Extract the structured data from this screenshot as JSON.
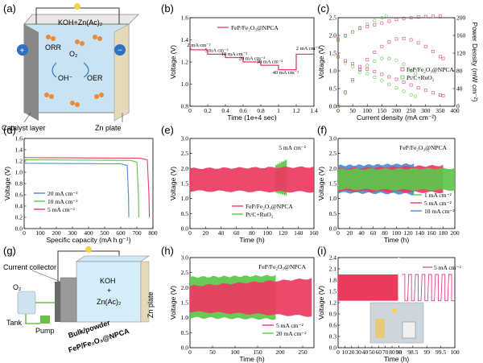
{
  "panels": {
    "a": {
      "label": "(a)",
      "electrolyte": "KOH+Zn(Ac)₂",
      "o2": "O₂",
      "orr": "ORR",
      "oer": "OER",
      "oh": "OH⁻",
      "catalyst_layer": "Catalyst layer",
      "zn_plate": "Zn plate",
      "plus": "+",
      "minus": "−"
    },
    "b": {
      "label": "(b)"
    },
    "c": {
      "label": "(c)"
    },
    "d": {
      "label": "(d)"
    },
    "e": {
      "label": "(e)"
    },
    "f": {
      "label": "(f)"
    },
    "g": {
      "label": "(g)",
      "current_collector": "Current collector",
      "o2": "O₂",
      "tank": "Tank",
      "pump": "Pump",
      "bulk_powder": "Bulk/powder",
      "catalyst": "FeP/Fe₂O₃@NPCA",
      "kcl": "KOH",
      "plus": "+",
      "zn_ac": "Zn(Ac)₂",
      "zn_plate": "Zn plate"
    },
    "h": {
      "label": "(h)"
    },
    "i": {
      "label": "(i)"
    }
  },
  "colors": {
    "red": "#ec3a5f",
    "green": "#5cc64a",
    "blue": "#4a8cd8",
    "cyan": "#5ab0d0",
    "pink": "#e0408a"
  },
  "chart_data": [
    {
      "id": "b",
      "type": "line",
      "xlabel": "Time (1e+4 sec)",
      "ylabel": "Voltage (V)",
      "xlim": [
        0,
        1.4
      ],
      "ylim": [
        0.8,
        1.6
      ],
      "xticks": [
        0,
        0.2,
        0.4,
        0.6,
        0.8,
        1.0,
        1.2,
        1.4
      ],
      "yticks": [
        0.8,
        1.0,
        1.2,
        1.4,
        1.6
      ],
      "series": [
        {
          "name": "FeP/Fe₂O₃@NPCA",
          "x": [
            0,
            0.01,
            0.2,
            0.2,
            0.4,
            0.4,
            0.6,
            0.6,
            0.8,
            0.8,
            1.0,
            1.0,
            1.2,
            1.2,
            1.4
          ],
          "y": [
            1.35,
            1.31,
            1.31,
            1.27,
            1.27,
            1.24,
            1.24,
            1.2,
            1.2,
            1.17,
            1.17,
            1.13,
            1.13,
            1.27,
            1.27
          ]
        }
      ],
      "annotations": [
        "2 mA cm⁻²",
        "5 mA cm⁻²",
        "10 mA cm⁻²",
        "20 mA cm⁻²",
        "30 mA cm⁻²",
        "40 mA cm⁻²",
        "2 mA cm⁻²"
      ]
    },
    {
      "id": "c",
      "type": "scatter",
      "xlabel": "Current density (mA cm⁻²)",
      "ylabel": "Voltage (V)",
      "y2label": "Power Density (mW cm⁻²)",
      "xlim": [
        0,
        400
      ],
      "ylim": [
        0,
        2.5
      ],
      "y2lim": [
        0,
        200
      ],
      "xticks": [
        0,
        50,
        100,
        150,
        200,
        250,
        300,
        350,
        400
      ],
      "yticks": [
        0.0,
        0.5,
        1.0,
        1.5,
        2.0,
        2.5
      ],
      "y2ticks": [
        0,
        40,
        80,
        120,
        160,
        200
      ],
      "series": [
        {
          "name": "FeP/Fe₂O₃@NPCA",
          "kind": "charge",
          "x": [
            0,
            25,
            50,
            75,
            100,
            125,
            150,
            175,
            200,
            225,
            250,
            275,
            300,
            325,
            350
          ],
          "y": [
            1.9,
            2.0,
            2.1,
            2.2,
            2.25,
            2.3,
            2.35,
            2.4,
            2.45,
            2.48,
            2.5,
            2.52,
            2.53,
            2.54,
            2.55
          ]
        },
        {
          "name": "Pt/C+RuO₂",
          "kind": "charge",
          "x": [
            0,
            25,
            50,
            75,
            100,
            125,
            150,
            165
          ],
          "y": [
            1.85,
            1.98,
            2.1,
            2.22,
            2.32,
            2.42,
            2.5,
            2.55
          ]
        },
        {
          "name": "FeP/Fe₂O₃@NPCA",
          "kind": "discharge",
          "x": [
            0,
            25,
            50,
            75,
            100,
            125,
            150,
            175,
            200,
            225,
            250,
            275,
            300,
            325,
            350,
            360
          ],
          "y": [
            1.4,
            1.28,
            1.2,
            1.12,
            1.05,
            0.98,
            0.9,
            0.83,
            0.76,
            0.68,
            0.6,
            0.52,
            0.45,
            0.38,
            0.32,
            0.3
          ]
        },
        {
          "name": "Pt/C+RuO₂",
          "kind": "discharge",
          "x": [
            0,
            25,
            50,
            75,
            100,
            125,
            150,
            175,
            200,
            225,
            250,
            265
          ],
          "y": [
            1.38,
            1.22,
            1.12,
            1.02,
            0.92,
            0.82,
            0.72,
            0.62,
            0.52,
            0.42,
            0.32,
            0.28
          ]
        },
        {
          "name": "FeP/Fe₂O₃@NPCA",
          "kind": "power",
          "x": [
            0,
            25,
            50,
            75,
            100,
            125,
            150,
            175,
            200,
            225,
            250,
            275,
            300,
            325,
            350,
            360
          ],
          "y": [
            0,
            32,
            60,
            84,
            105,
            122,
            135,
            145,
            152,
            153,
            150,
            143,
            135,
            124,
            112,
            108
          ]
        },
        {
          "name": "Pt/C+RuO₂",
          "kind": "power",
          "x": [
            0,
            25,
            50,
            75,
            100,
            125,
            150,
            175,
            200,
            225,
            250,
            265
          ],
          "y": [
            0,
            30,
            56,
            76,
            92,
            102,
            108,
            108,
            104,
            95,
            80,
            74
          ]
        }
      ]
    },
    {
      "id": "d",
      "type": "line",
      "xlabel": "Specific capacity (mA h g⁻¹)",
      "ylabel": "Voltage (V)",
      "xlim": [
        0,
        800
      ],
      "ylim": [
        0.0,
        1.6
      ],
      "xticks": [
        0,
        100,
        200,
        300,
        400,
        500,
        600,
        700,
        800
      ],
      "yticks": [
        0.0,
        0.2,
        0.4,
        0.6,
        0.8,
        1.0,
        1.2,
        1.4,
        1.6
      ],
      "series": [
        {
          "name": "20 mA cm⁻²",
          "x": [
            0,
            10,
            600,
            640,
            648,
            650
          ],
          "y": [
            1.17,
            1.16,
            1.15,
            1.12,
            0.6,
            0.2
          ]
        },
        {
          "name": "10 mA cm⁻²",
          "x": [
            0,
            10,
            660,
            700,
            710,
            712
          ],
          "y": [
            1.23,
            1.22,
            1.21,
            1.18,
            0.6,
            0.2
          ]
        },
        {
          "name": "5 mA cm⁻²",
          "x": [
            0,
            10,
            720,
            765,
            775,
            778
          ],
          "y": [
            1.27,
            1.26,
            1.25,
            1.22,
            0.6,
            0.2
          ]
        }
      ]
    },
    {
      "id": "e",
      "type": "area",
      "xlabel": "Time (h)",
      "ylabel": "Voltage (V)",
      "note": "5 mA cm⁻²",
      "xlim": [
        0,
        160
      ],
      "ylim": [
        0.0,
        3.0
      ],
      "xticks": [
        0,
        20,
        40,
        60,
        80,
        100,
        120,
        140,
        160
      ],
      "yticks": [
        0.0,
        0.5,
        1.0,
        1.5,
        2.0,
        2.5,
        3.0
      ],
      "series": [
        {
          "name": "FeP/Fe₂O₃@NPCA",
          "x": [
            0,
            160
          ],
          "upper": [
            2.0,
            2.05
          ],
          "lower": [
            1.25,
            1.22
          ]
        },
        {
          "name": "Pt/C+RuO₂",
          "x": [
            110,
            125
          ],
          "upper": [
            2.1,
            2.3
          ],
          "lower": [
            1.2,
            1.1
          ]
        }
      ]
    },
    {
      "id": "f",
      "type": "area",
      "xlabel": "Time (h)",
      "ylabel": "Voltage (V)",
      "note": "FeP/Fe₂O₃@NPCA",
      "xlim": [
        0,
        200
      ],
      "ylim": [
        0.0,
        3.0
      ],
      "xticks": [
        0,
        20,
        40,
        60,
        80,
        100,
        120,
        140,
        160,
        180,
        200
      ],
      "yticks": [
        0.0,
        0.5,
        1.0,
        1.5,
        2.0,
        2.5,
        3.0
      ],
      "series": [
        {
          "name": "1 mA cm⁻²",
          "x": [
            0,
            200
          ],
          "upper": [
            1.98,
            2.0
          ],
          "lower": [
            1.3,
            1.28
          ]
        },
        {
          "name": "5 mA cm⁻²",
          "x": [
            0,
            180
          ],
          "upper": [
            2.0,
            2.1
          ],
          "lower": [
            1.25,
            1.2
          ]
        },
        {
          "name": "10 mA cm⁻²",
          "x": [
            0,
            130
          ],
          "upper": [
            2.1,
            2.15
          ],
          "lower": [
            1.2,
            1.15
          ]
        }
      ]
    },
    {
      "id": "h",
      "type": "area",
      "xlabel": "Time (h)",
      "ylabel": "Voltage (V)",
      "note": "FeP/Fe₂O₃@NPCA",
      "xlim": [
        0,
        275
      ],
      "ylim": [
        0.0,
        3.0
      ],
      "xticks": [
        0,
        50,
        100,
        150,
        200,
        250
      ],
      "yticks": [
        0.0,
        0.5,
        1.0,
        1.5,
        2.0,
        2.5,
        3.0
      ],
      "series": [
        {
          "name": "5 mA cm⁻²",
          "x": [
            0,
            270
          ],
          "upper": [
            2.05,
            2.3
          ],
          "lower": [
            1.2,
            1.05
          ]
        },
        {
          "name": "20 mA cm⁻²",
          "x": [
            0,
            190
          ],
          "upper": [
            2.35,
            2.4
          ],
          "lower": [
            1.0,
            0.95
          ]
        }
      ]
    },
    {
      "id": "i",
      "type": "line",
      "xlabel": "Time (h)",
      "ylabel": "Voltage (V)",
      "note": "5 mA cm⁻²",
      "xlim": [
        0,
        100
      ],
      "ylim": [
        0.0,
        2.4
      ],
      "xticks": [
        0,
        10,
        20,
        30,
        40,
        50,
        60,
        70,
        80,
        90,
        98.0,
        98.5,
        99.0,
        99.5,
        100.0
      ],
      "yticks": [
        0.0,
        0.3,
        0.6,
        0.9,
        1.2,
        1.5,
        1.8,
        2.1,
        2.4
      ],
      "series": [
        {
          "name": "5 mA cm⁻²",
          "upper": 1.95,
          "lower": 1.25
        }
      ]
    }
  ]
}
